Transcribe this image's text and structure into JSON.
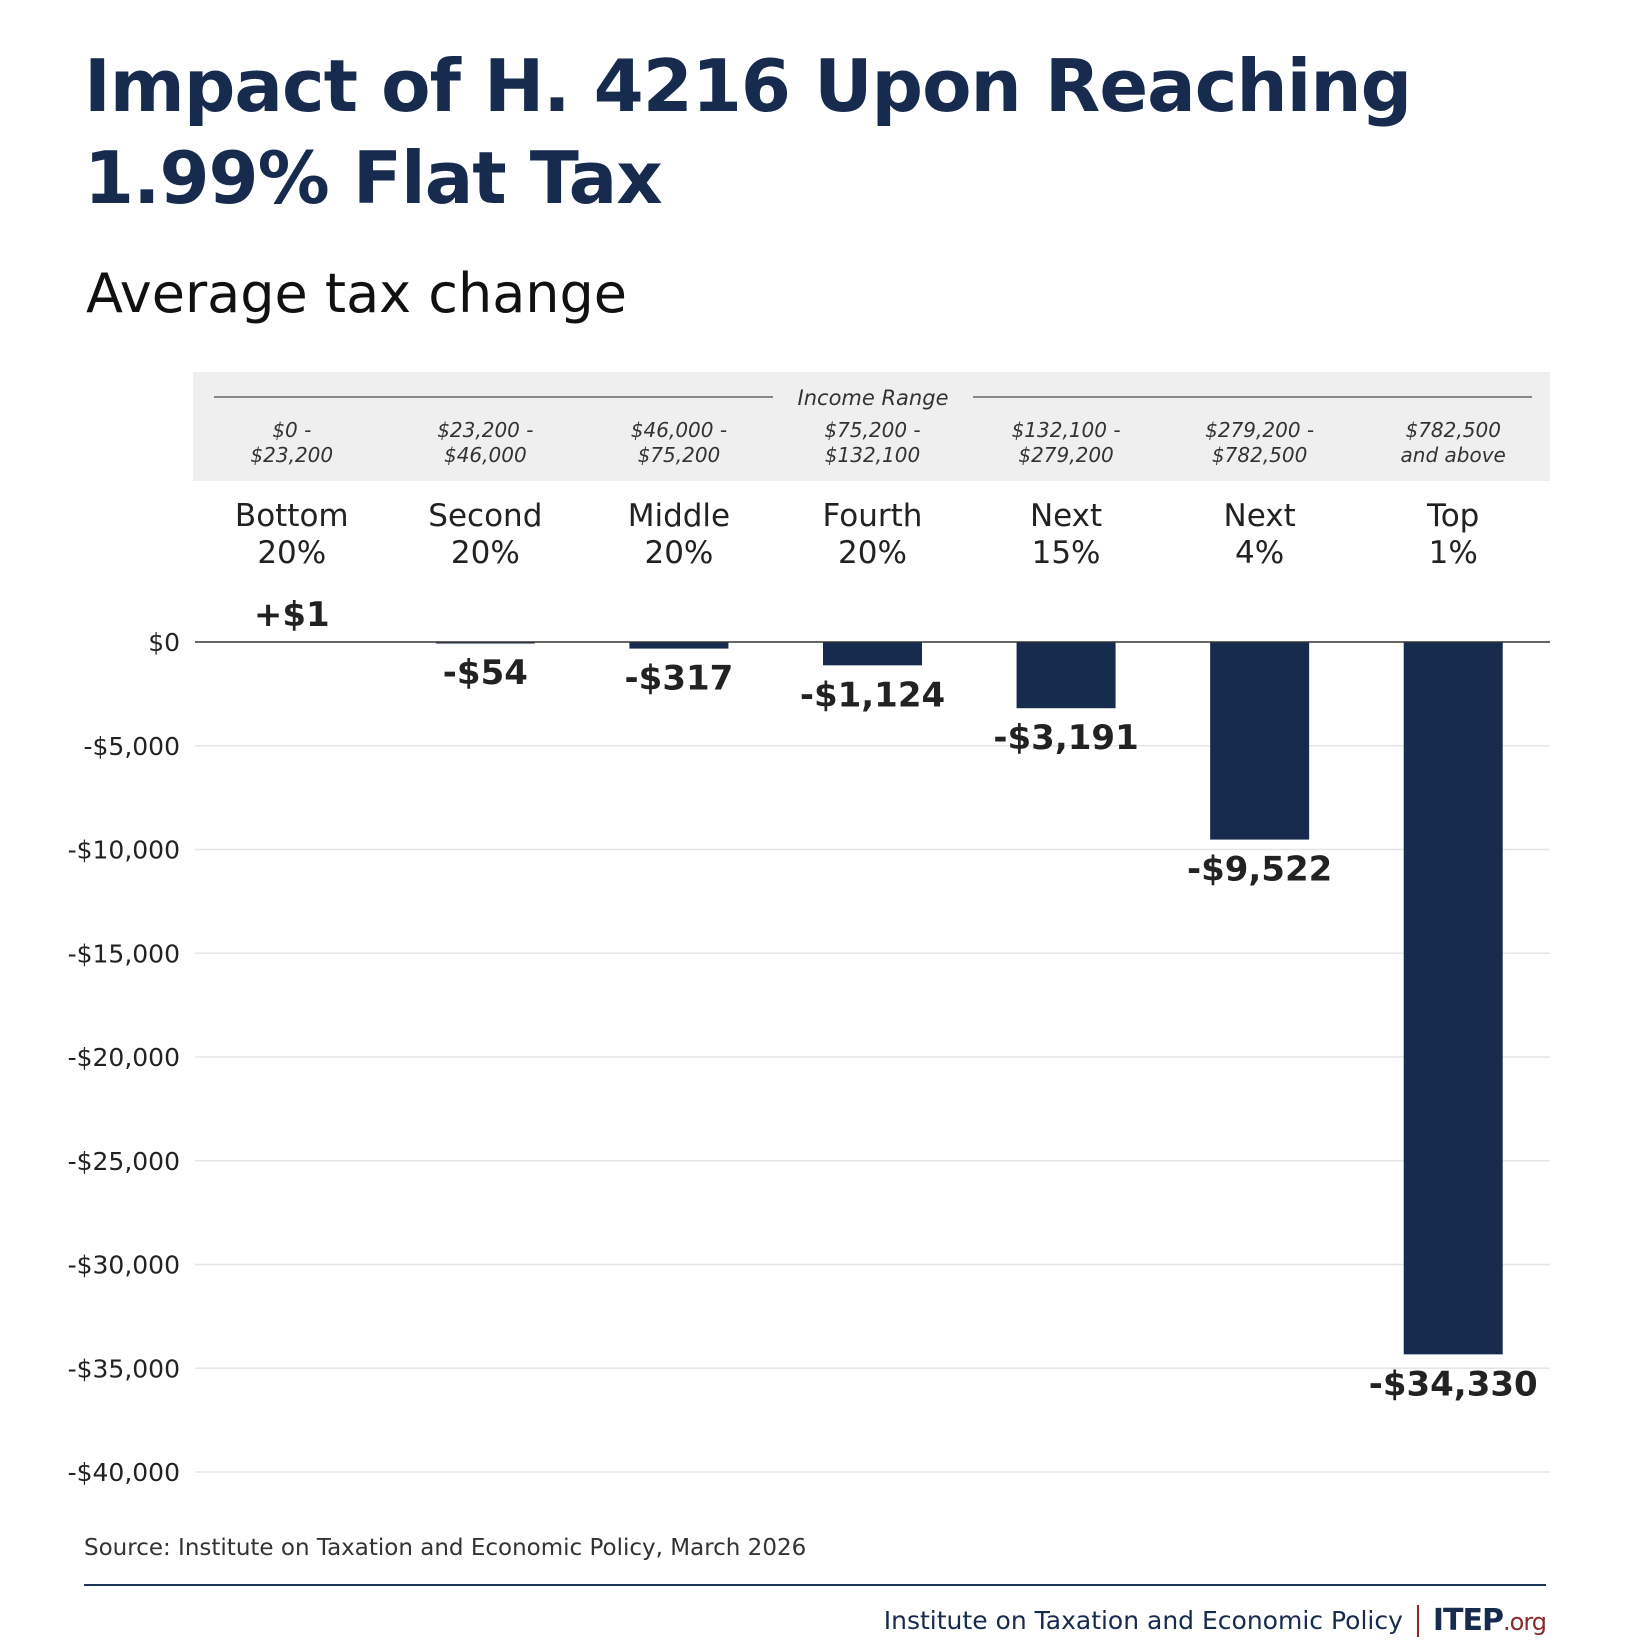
{
  "title": "Impact of H. 4216 Upon Reaching 1.99% Flat Tax",
  "subtitle": "Average tax change",
  "source": "Source: Institute on Taxation and Economic Policy, March 2026",
  "footer": {
    "org_name": "Institute on Taxation and Economic Policy",
    "logo_main": "ITEP",
    "logo_suffix": ".org"
  },
  "colors": {
    "bar": "#162b4e",
    "title": "#162b4e",
    "header_bg": "#efefef",
    "gridline": "#e6e6e6",
    "text": "#222222",
    "accent": "#8b2a2a"
  },
  "chart_data": {
    "type": "bar",
    "title": "Impact of H. 4216 Upon Reaching 1.99% Flat Tax",
    "subtitle": "Average tax change",
    "header_label": "Income Range",
    "categories": [
      "Bottom 20%",
      "Second 20%",
      "Middle 20%",
      "Fourth 20%",
      "Next 15%",
      "Next 4%",
      "Top 1%"
    ],
    "category_lines": [
      [
        "Bottom",
        "20%"
      ],
      [
        "Second",
        "20%"
      ],
      [
        "Middle",
        "20%"
      ],
      [
        "Fourth",
        "20%"
      ],
      [
        "Next",
        "15%"
      ],
      [
        "Next",
        "4%"
      ],
      [
        "Top",
        "1%"
      ]
    ],
    "income_ranges": [
      [
        "$0 -",
        "$23,200"
      ],
      [
        "$23,200 -",
        "$46,000"
      ],
      [
        "$46,000 -",
        "$75,200"
      ],
      [
        "$75,200 -",
        "$132,100"
      ],
      [
        "$132,100 -",
        "$279,200"
      ],
      [
        "$279,200 -",
        "$782,500"
      ],
      [
        "$782,500",
        "and above"
      ]
    ],
    "values": [
      1,
      -54,
      -317,
      -1124,
      -3191,
      -9522,
      -34330
    ],
    "value_labels": [
      "+$1",
      "-$54",
      "-$317",
      "-$1,124",
      "-$3,191",
      "-$9,522",
      "-$34,330"
    ],
    "yticks": [
      0,
      -5000,
      -10000,
      -15000,
      -20000,
      -25000,
      -30000,
      -35000,
      -40000
    ],
    "ytick_labels": [
      "$0",
      "-$5,000",
      "-$10,000",
      "-$15,000",
      "-$20,000",
      "-$25,000",
      "-$30,000",
      "-$35,000",
      "-$40,000"
    ],
    "ylim": [
      -40000,
      0
    ],
    "xlabel": "",
    "ylabel": "",
    "grid": true,
    "legend": "none"
  }
}
